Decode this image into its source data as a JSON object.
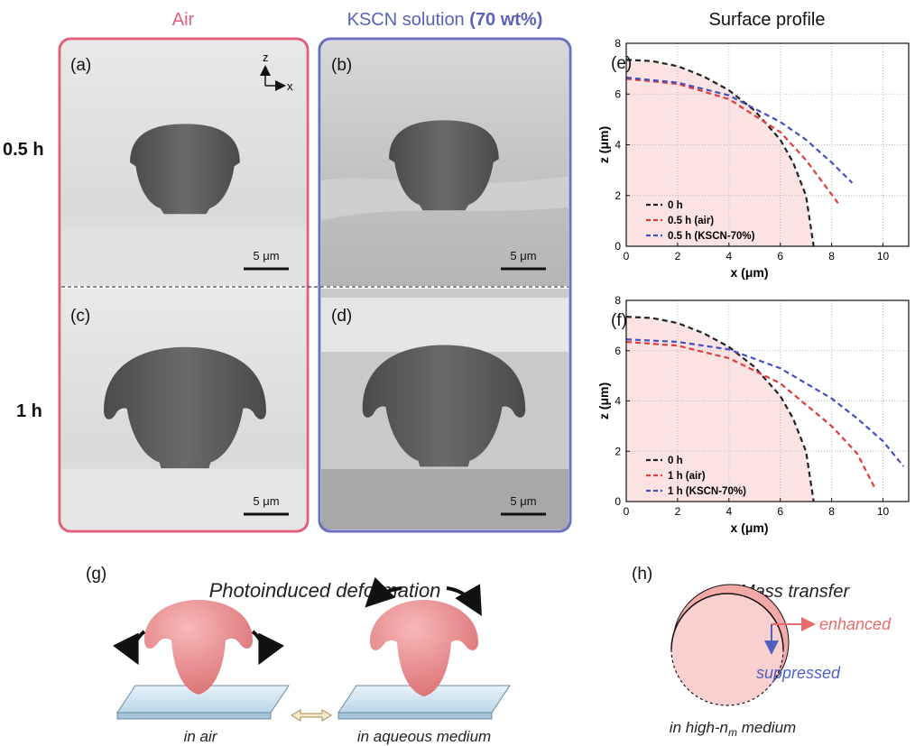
{
  "headers": {
    "air": "Air",
    "kscn": "KSCN solution",
    "kscn_conc": "(70 wt%)",
    "profile": "Surface profile"
  },
  "rows": [
    "0.5 h",
    "1 h"
  ],
  "panels": [
    "(a)",
    "(b)",
    "(c)",
    "(d)"
  ],
  "axis_glyph": {
    "z": "z",
    "x": "x"
  },
  "scale_bars": [
    "5 μm",
    "5 μm",
    "5 μm",
    "5 μm"
  ],
  "chart_data": [
    {
      "type": "line",
      "panel_label": "(e)",
      "xlabel": "x (μm)",
      "ylabel": "z (μm)",
      "xlim": [
        0,
        11
      ],
      "ylim": [
        0,
        8
      ],
      "xticks": [
        0,
        2,
        4,
        6,
        8,
        10
      ],
      "yticks": [
        0,
        2,
        4,
        6,
        8
      ],
      "grid": true,
      "legend": "lower left",
      "series": [
        {
          "name": "0 h",
          "color": "#222222",
          "x": [
            0,
            1,
            2,
            3,
            4,
            5,
            6,
            6.5,
            7,
            7.3
          ],
          "values": [
            7.35,
            7.3,
            7.1,
            6.7,
            6.15,
            5.35,
            4.2,
            3.3,
            2.0,
            0
          ]
        },
        {
          "name": "0.5 h (air)",
          "color": "#e03c3c",
          "x": [
            0,
            2,
            4,
            6,
            7,
            8.25
          ],
          "values": [
            6.6,
            6.4,
            5.8,
            4.5,
            3.4,
            1.7
          ]
        },
        {
          "name": "0.5 h (KSCN-70%)",
          "color": "#4450c0",
          "x": [
            0,
            2,
            4,
            6,
            7,
            8,
            8.8
          ],
          "values": [
            6.65,
            6.45,
            5.95,
            4.9,
            4.2,
            3.3,
            2.5
          ]
        }
      ]
    },
    {
      "type": "line",
      "panel_label": "(f)",
      "xlabel": "x (μm)",
      "ylabel": "z (μm)",
      "xlim": [
        0,
        11
      ],
      "ylim": [
        0,
        8
      ],
      "xticks": [
        0,
        2,
        4,
        6,
        8,
        10
      ],
      "yticks": [
        0,
        2,
        4,
        6,
        8
      ],
      "grid": true,
      "legend": "lower left",
      "series": [
        {
          "name": "0 h",
          "color": "#222222",
          "x": [
            0,
            1,
            2,
            3,
            4,
            5,
            6,
            6.5,
            7,
            7.3
          ],
          "values": [
            7.35,
            7.3,
            7.1,
            6.7,
            6.15,
            5.35,
            4.2,
            3.3,
            2.0,
            0
          ]
        },
        {
          "name": "1 h (air)",
          "color": "#e03c3c",
          "x": [
            0,
            2,
            4,
            6,
            8,
            9,
            9.7
          ],
          "values": [
            6.35,
            6.2,
            5.7,
            4.7,
            3.0,
            1.9,
            0.5
          ]
        },
        {
          "name": "1 h (KSCN-70%)",
          "color": "#4450c0",
          "x": [
            0,
            2,
            4,
            6,
            8,
            9,
            10,
            10.8
          ],
          "values": [
            6.45,
            6.35,
            6.05,
            5.3,
            4.1,
            3.3,
            2.4,
            1.4
          ]
        }
      ]
    }
  ],
  "schematic": {
    "label": "(g)",
    "title": "Photoinduced deformation",
    "captions": [
      "in air",
      "in aqueous medium"
    ]
  },
  "mass_transfer": {
    "label": "(h)",
    "title": "Mass transfer",
    "enhanced": "enhanced",
    "suppressed": "suppressed",
    "caption": [
      "in high-n",
      "m",
      " medium"
    ]
  }
}
